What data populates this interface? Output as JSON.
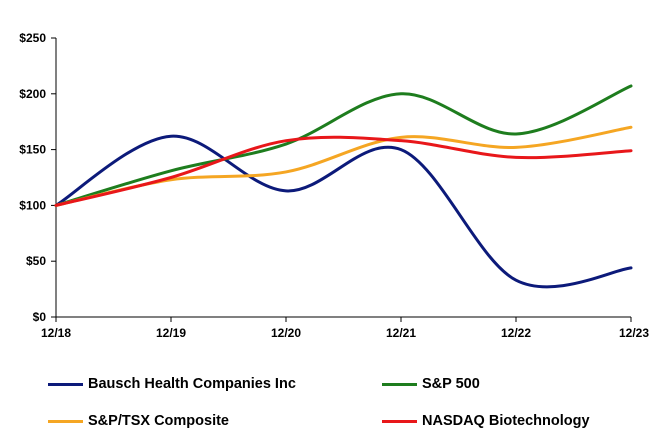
{
  "chart_data": {
    "type": "line",
    "title": "",
    "xlabel": "",
    "ylabel": "",
    "categories": [
      "12/18",
      "12/19",
      "12/20",
      "12/21",
      "12/22",
      "12/23"
    ],
    "ylim": [
      0,
      250
    ],
    "yticks": [
      0,
      50,
      100,
      150,
      200,
      250
    ],
    "ytick_labels": [
      "$0",
      "$50",
      "$100",
      "$150",
      "$200",
      "$250"
    ],
    "grid": false,
    "legend_position": "bottom",
    "series": [
      {
        "name": "Bausch Health Companies Inc",
        "color": "#0c1a7a",
        "values": [
          100,
          162,
          113,
          150,
          33,
          44
        ]
      },
      {
        "name": "S&P 500",
        "color": "#1e7d1e",
        "values": [
          100,
          131,
          155,
          200,
          164,
          207
        ]
      },
      {
        "name": "S&P/TSX Composite",
        "color": "#f5a623",
        "values": [
          100,
          123,
          130,
          161,
          152,
          170
        ]
      },
      {
        "name": "NASDAQ Biotechnology",
        "color": "#e8171a",
        "values": [
          100,
          125,
          158,
          158,
          143,
          149
        ]
      }
    ]
  }
}
